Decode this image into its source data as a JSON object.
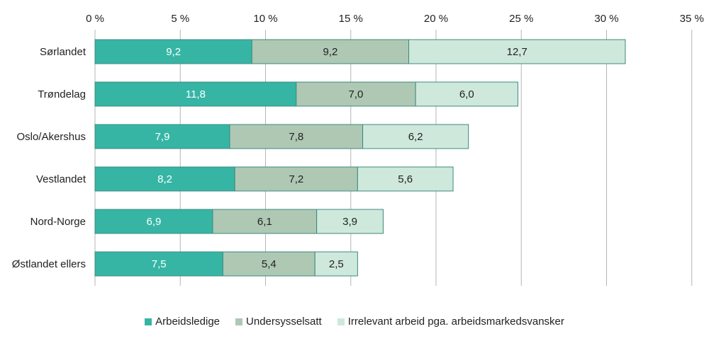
{
  "chart_data": {
    "type": "bar",
    "orientation": "horizontal",
    "stacked": true,
    "categories": [
      "Sørlandet",
      "Trøndelag",
      "Oslo/Akershus",
      "Vestlandet",
      "Nord-Norge",
      "Østlandet ellers"
    ],
    "series": [
      {
        "name": "Arbeidsledige",
        "color": "#36b5a5",
        "values": [
          9.2,
          11.8,
          7.9,
          8.2,
          6.9,
          7.5
        ],
        "labels": [
          "9,2",
          "11,8",
          "7,9",
          "8,2",
          "6,9",
          "7,5"
        ],
        "label_color": "#ffffff"
      },
      {
        "name": "Undersysselsatt",
        "color": "#aec8b4",
        "values": [
          9.2,
          7.0,
          7.8,
          7.2,
          6.1,
          5.4
        ],
        "labels": [
          "9,2",
          "7,0",
          "7,8",
          "7,2",
          "6,1",
          "5,4"
        ],
        "label_color": "#222222"
      },
      {
        "name": "Irrelevant arbeid pga. arbeidsmarkedsvansker",
        "color": "#cfe8dc",
        "values": [
          12.7,
          6.0,
          6.2,
          5.6,
          3.9,
          2.5
        ],
        "labels": [
          "12,7",
          "6,0",
          "6,2",
          "5,6",
          "3,9",
          "2,5"
        ],
        "label_color": "#222222"
      }
    ],
    "xlim": [
      0,
      35
    ],
    "xticks": [
      0,
      5,
      10,
      15,
      20,
      25,
      30,
      35
    ],
    "xtick_labels": [
      "0 %",
      "5 %",
      "10 %",
      "15 %",
      "20 %",
      "25 %",
      "30 %",
      "35 %"
    ],
    "xaxis_position": "top",
    "grid": "vertical",
    "legend_position": "bottom",
    "title": "",
    "xlabel": "",
    "ylabel": ""
  }
}
